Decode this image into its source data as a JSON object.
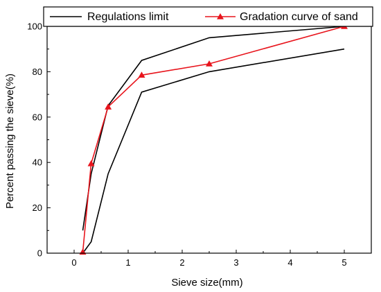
{
  "chart_data": {
    "type": "line",
    "title": "",
    "xlabel": "Sieve size(mm)",
    "ylabel": "Percent passing the sieve(%)",
    "xlim": [
      -0.5,
      5.5
    ],
    "ylim": [
      0,
      100
    ],
    "xticks": [
      0,
      1,
      2,
      3,
      4,
      5
    ],
    "yticks": [
      0,
      20,
      40,
      60,
      80,
      100
    ],
    "grid": false,
    "legend_position": "top",
    "series": [
      {
        "name": "Regulations limit",
        "color": "#000000",
        "marker": "none",
        "x": [
          0.16,
          0.315,
          0.63,
          1.25,
          2.5,
          5
        ],
        "y": [
          10,
          35,
          65,
          85,
          95,
          100
        ]
      },
      {
        "name": "",
        "color": "#000000",
        "marker": "none",
        "x": [
          0.16,
          0.315,
          0.63,
          1.25,
          2.5,
          5
        ],
        "y": [
          0,
          5,
          35,
          71,
          80,
          90
        ]
      },
      {
        "name": "Gradation curve of sand",
        "color": "#e8141c",
        "marker": "triangle",
        "x": [
          0.16,
          0.315,
          0.63,
          1.25,
          2.5,
          5
        ],
        "y": [
          0.5,
          39.5,
          64.5,
          78.5,
          83.5,
          100
        ]
      }
    ]
  }
}
